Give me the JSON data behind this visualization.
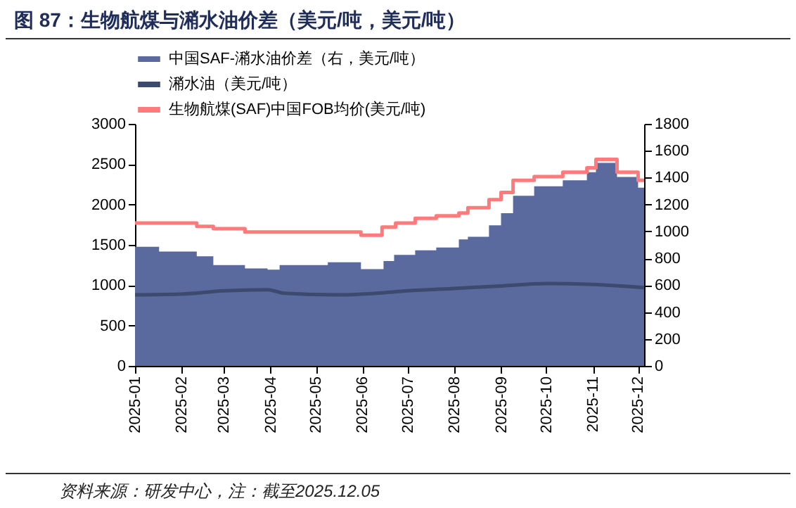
{
  "chart_data": {
    "type": "line",
    "title": "图 87：生物航煤与潲水油价差（美元/吨，美元/吨）",
    "annotations": [
      "资料来源：研发中心，注：截至2025.12.05"
    ],
    "xlim": [
      "2025-01-01",
      "2025-12-05"
    ],
    "xticks": [
      "2025-01",
      "2025-02",
      "2025-03",
      "2025-04",
      "2025-05",
      "2025-06",
      "2025-07",
      "2025-08",
      "2025-09",
      "2025-10",
      "2025-11",
      "2025-12"
    ],
    "ylim": [
      0,
      3000
    ],
    "yticks": [
      0,
      500,
      1000,
      1500,
      2000,
      2500,
      3000
    ],
    "y2lim": [
      0,
      1800
    ],
    "y2ticks": [
      0,
      200,
      400,
      600,
      800,
      1000,
      1200,
      1400,
      1600,
      1800
    ],
    "legend": "top",
    "grid": false,
    "series": [
      {
        "name": "中国SAF-潲水油价差（右，美元/吨）",
        "type": "area",
        "axis": "y2",
        "color": "#5a6a9f",
        "x": [
          "2025-01-01",
          "2025-01-17",
          "2025-02-11",
          "2025-02-22",
          "2025-03-15",
          "2025-03-30",
          "2025-04-07",
          "2025-05-09",
          "2025-05-31",
          "2025-06-15",
          "2025-06-22",
          "2025-07-06",
          "2025-07-20",
          "2025-08-04",
          "2025-08-10",
          "2025-08-24",
          "2025-09-01",
          "2025-09-09",
          "2025-09-23",
          "2025-10-12",
          "2025-10-28",
          "2025-11-03",
          "2025-11-17",
          "2025-12-01",
          "2025-12-05"
        ],
        "values": [
          885,
          850,
          815,
          750,
          725,
          715,
          750,
          770,
          720,
          780,
          825,
          860,
          880,
          940,
          960,
          1045,
          1135,
          1265,
          1335,
          1380,
          1440,
          1510,
          1405,
          1325,
          1325
        ]
      },
      {
        "name": "潲水油（美元/吨）",
        "type": "line",
        "color": "#3c4a6e",
        "x": [
          "2025-01-01",
          "2025-02-01",
          "2025-03-01",
          "2025-03-30",
          "2025-04-10",
          "2025-05-15",
          "2025-06-10",
          "2025-07-01",
          "2025-08-01",
          "2025-09-01",
          "2025-10-01",
          "2025-11-01",
          "2025-11-20",
          "2025-12-05"
        ],
        "values": [
          880,
          890,
          930,
          945,
          900,
          880,
          900,
          930,
          960,
          990,
          1020,
          1010,
          990,
          970
        ]
      },
      {
        "name": "生物航煤(SAF)中国FOB均价(美元/吨)",
        "type": "step",
        "color": "#ff7b7b",
        "x": [
          "2025-01-01",
          "2025-02-11",
          "2025-02-22",
          "2025-03-15",
          "2025-05-31",
          "2025-06-14",
          "2025-06-23",
          "2025-07-06",
          "2025-07-20",
          "2025-08-04",
          "2025-08-10",
          "2025-08-24",
          "2025-09-01",
          "2025-09-09",
          "2025-09-23",
          "2025-10-12",
          "2025-10-28",
          "2025-11-03",
          "2025-11-17",
          "2025-12-01",
          "2025-12-05"
        ],
        "values": [
          1770,
          1730,
          1700,
          1660,
          1620,
          1720,
          1770,
          1830,
          1860,
          1895,
          1960,
          2060,
          2150,
          2300,
          2345,
          2400,
          2455,
          2560,
          2400,
          2300,
          2300
        ]
      }
    ]
  }
}
